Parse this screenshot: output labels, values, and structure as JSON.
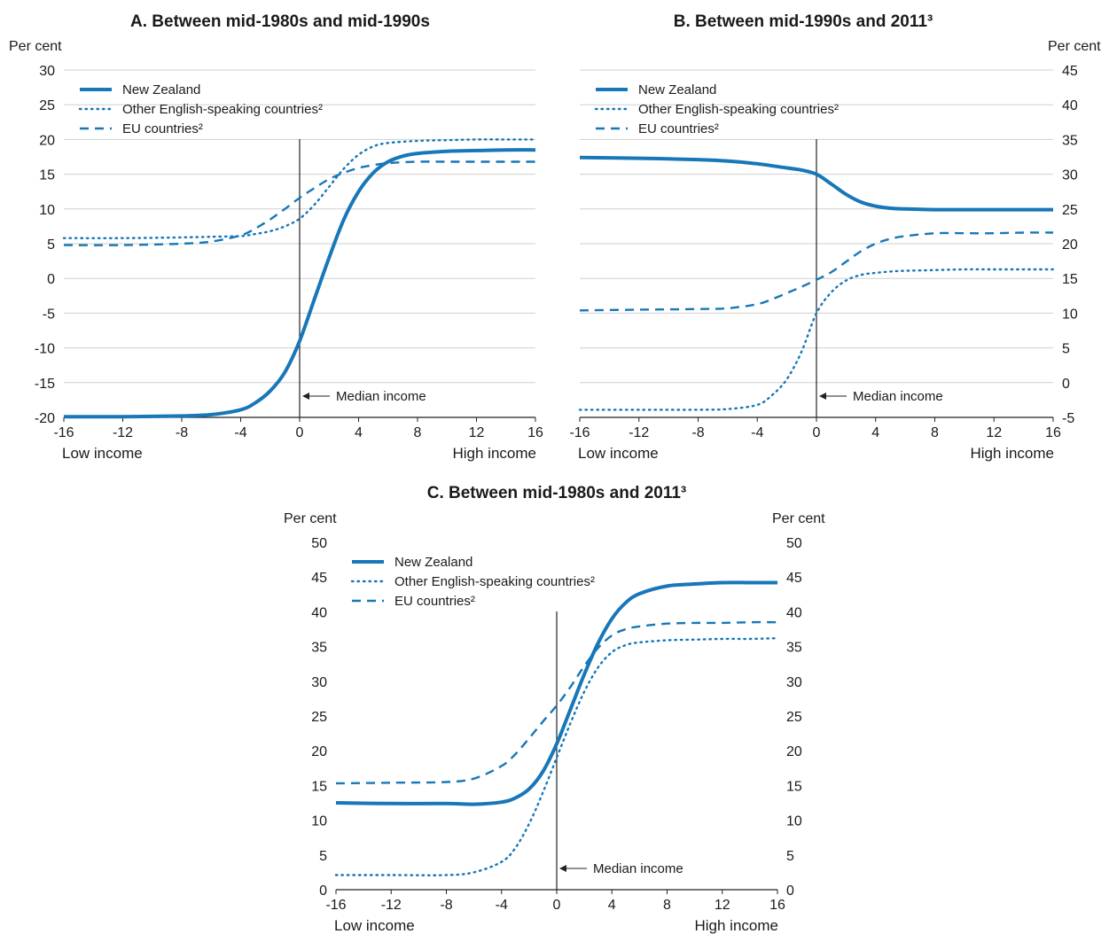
{
  "legend_labels": {
    "nz": "New Zealand",
    "oe": "Other English-speaking countries²",
    "eu": "EU countries²"
  },
  "styles": {
    "color": "#1777b8",
    "nz": "solid",
    "oe": "dotted",
    "eu": "dashed"
  },
  "chart_data": [
    {
      "id": "A",
      "type": "line",
      "title": "A. Between mid-1980s and mid-1990s",
      "ylabel_left": "Per cent",
      "ylabel_right": "",
      "xlim": [
        -16,
        16
      ],
      "xticks": [
        -16,
        -12,
        -8,
        -4,
        0,
        4,
        8,
        12,
        16
      ],
      "ylim": [
        -20,
        30
      ],
      "yticks": [
        -20,
        -15,
        -10,
        -5,
        0,
        5,
        10,
        15,
        20,
        25,
        30
      ],
      "axis_side": "left",
      "x_low_label": "Low income",
      "x_high_label": "High income",
      "annotation": {
        "text": "Median income",
        "x": 0
      },
      "grid": true,
      "legend_position": "top-left",
      "series": [
        {
          "key": "nz",
          "name": "New Zealand",
          "x": [
            -16,
            -12,
            -8,
            -6,
            -4,
            -3,
            -2,
            -1,
            0,
            1,
            2,
            3,
            4,
            5,
            6,
            7,
            8,
            10,
            12,
            14,
            16
          ],
          "y": [
            -19.9,
            -19.9,
            -19.8,
            -19.6,
            -18.9,
            -17.9,
            -16.2,
            -13.5,
            -9.0,
            -3.0,
            3.0,
            8.5,
            12.5,
            15.2,
            16.8,
            17.6,
            18.0,
            18.3,
            18.4,
            18.5,
            18.5
          ]
        },
        {
          "key": "oe",
          "name": "Other English-speaking countries²",
          "x": [
            -16,
            -12,
            -8,
            -6,
            -4,
            -3,
            -2,
            -1,
            0,
            1,
            2,
            3,
            4,
            5,
            6,
            8,
            10,
            12,
            14,
            16
          ],
          "y": [
            5.8,
            5.8,
            5.9,
            6.0,
            6.1,
            6.4,
            6.8,
            7.5,
            8.6,
            10.6,
            13.2,
            15.8,
            17.8,
            19.0,
            19.5,
            19.8,
            19.9,
            20.0,
            20.0,
            20.0
          ]
        },
        {
          "key": "eu",
          "name": "EU countries²",
          "x": [
            -16,
            -12,
            -8,
            -6,
            -4,
            -3,
            -2,
            -1,
            0,
            1,
            2,
            3,
            4,
            5,
            6,
            8,
            10,
            12,
            14,
            16
          ],
          "y": [
            4.8,
            4.8,
            5.0,
            5.3,
            6.2,
            7.2,
            8.5,
            10.0,
            11.6,
            13.0,
            14.3,
            15.2,
            15.9,
            16.3,
            16.6,
            16.8,
            16.8,
            16.8,
            16.8,
            16.8
          ]
        }
      ]
    },
    {
      "id": "B",
      "type": "line",
      "title": "B. Between mid-1990s and 2011³",
      "ylabel_left": "",
      "ylabel_right": "Per cent",
      "xlim": [
        -16,
        16
      ],
      "xticks": [
        -16,
        -12,
        -8,
        -4,
        0,
        4,
        8,
        12,
        16
      ],
      "ylim": [
        -5,
        45
      ],
      "yticks": [
        -5,
        0,
        5,
        10,
        15,
        20,
        25,
        30,
        35,
        40,
        45
      ],
      "axis_side": "right",
      "x_low_label": "Low income",
      "x_high_label": "High income",
      "annotation": {
        "text": "Median income",
        "x": 0
      },
      "grid": true,
      "legend_position": "top-left",
      "series": [
        {
          "key": "nz",
          "name": "New Zealand",
          "x": [
            -16,
            -12,
            -8,
            -6,
            -4,
            -2,
            -1,
            0,
            1,
            2,
            3,
            4,
            5,
            6,
            8,
            10,
            12,
            14,
            16
          ],
          "y": [
            32.4,
            32.3,
            32.1,
            31.9,
            31.5,
            30.9,
            30.6,
            30.0,
            28.6,
            27.1,
            26.0,
            25.4,
            25.1,
            25.0,
            24.9,
            24.9,
            24.9,
            24.9,
            24.9
          ]
        },
        {
          "key": "oe",
          "name": "Other English-speaking countries²",
          "x": [
            -16,
            -12,
            -8,
            -6,
            -4,
            -3,
            -2,
            -1,
            0,
            1,
            2,
            3,
            4,
            5,
            6,
            8,
            10,
            12,
            14,
            16
          ],
          "y": [
            -3.9,
            -3.9,
            -3.9,
            -3.8,
            -3.2,
            -1.8,
            0.5,
            4.5,
            10.0,
            13.0,
            14.7,
            15.5,
            15.8,
            16.0,
            16.1,
            16.2,
            16.3,
            16.3,
            16.3,
            16.3
          ]
        },
        {
          "key": "eu",
          "name": "EU countries²",
          "x": [
            -16,
            -12,
            -8,
            -6,
            -4,
            -3,
            -2,
            -1,
            0,
            1,
            2,
            3,
            4,
            5,
            6,
            8,
            10,
            12,
            14,
            16
          ],
          "y": [
            10.4,
            10.5,
            10.6,
            10.7,
            11.3,
            12.0,
            12.9,
            13.8,
            14.8,
            15.9,
            17.4,
            18.9,
            20.0,
            20.7,
            21.1,
            21.5,
            21.5,
            21.5,
            21.6,
            21.6
          ]
        }
      ]
    },
    {
      "id": "C",
      "type": "line",
      "title": "C. Between mid-1980s and 2011³",
      "ylabel_left": "Per cent",
      "ylabel_right": "Per cent",
      "xlim": [
        -16,
        16
      ],
      "xticks": [
        -16,
        -12,
        -8,
        -4,
        0,
        4,
        8,
        12,
        16
      ],
      "ylim": [
        0,
        50
      ],
      "yticks": [
        0,
        5,
        10,
        15,
        20,
        25,
        30,
        35,
        40,
        45,
        50
      ],
      "axis_side": "both",
      "x_low_label": "Low income",
      "x_high_label": "High income",
      "annotation": {
        "text": "Median income",
        "x": 0
      },
      "grid": false,
      "legend_position": "top-left",
      "series": [
        {
          "key": "nz",
          "name": "New Zealand",
          "x": [
            -16,
            -12,
            -8,
            -6,
            -4,
            -3,
            -2,
            -1,
            0,
            1,
            2,
            3,
            4,
            5,
            6,
            8,
            10,
            12,
            14,
            16
          ],
          "y": [
            12.5,
            12.4,
            12.4,
            12.3,
            12.6,
            13.2,
            14.5,
            17.0,
            21.0,
            26.0,
            31.0,
            35.5,
            39.0,
            41.3,
            42.6,
            43.7,
            44.0,
            44.2,
            44.2,
            44.2
          ]
        },
        {
          "key": "oe",
          "name": "Other English-speaking countries²",
          "x": [
            -16,
            -12,
            -8,
            -6,
            -4,
            -3,
            -2,
            -1,
            0,
            1,
            2,
            3,
            4,
            5,
            6,
            8,
            10,
            12,
            14,
            16
          ],
          "y": [
            2.1,
            2.1,
            2.1,
            2.5,
            4.0,
            6.0,
            9.5,
            14.0,
            19.0,
            24.0,
            28.5,
            32.0,
            34.2,
            35.2,
            35.6,
            35.9,
            36.0,
            36.1,
            36.1,
            36.2
          ]
        },
        {
          "key": "eu",
          "name": "EU countries²",
          "x": [
            -16,
            -12,
            -8,
            -6,
            -4,
            -3,
            -2,
            -1,
            0,
            1,
            2,
            3,
            4,
            5,
            6,
            8,
            10,
            12,
            14,
            16
          ],
          "y": [
            15.3,
            15.4,
            15.5,
            16.0,
            17.8,
            19.5,
            21.8,
            24.2,
            26.5,
            29.2,
            32.2,
            34.8,
            36.6,
            37.5,
            37.9,
            38.3,
            38.4,
            38.4,
            38.5,
            38.5
          ]
        }
      ]
    }
  ]
}
